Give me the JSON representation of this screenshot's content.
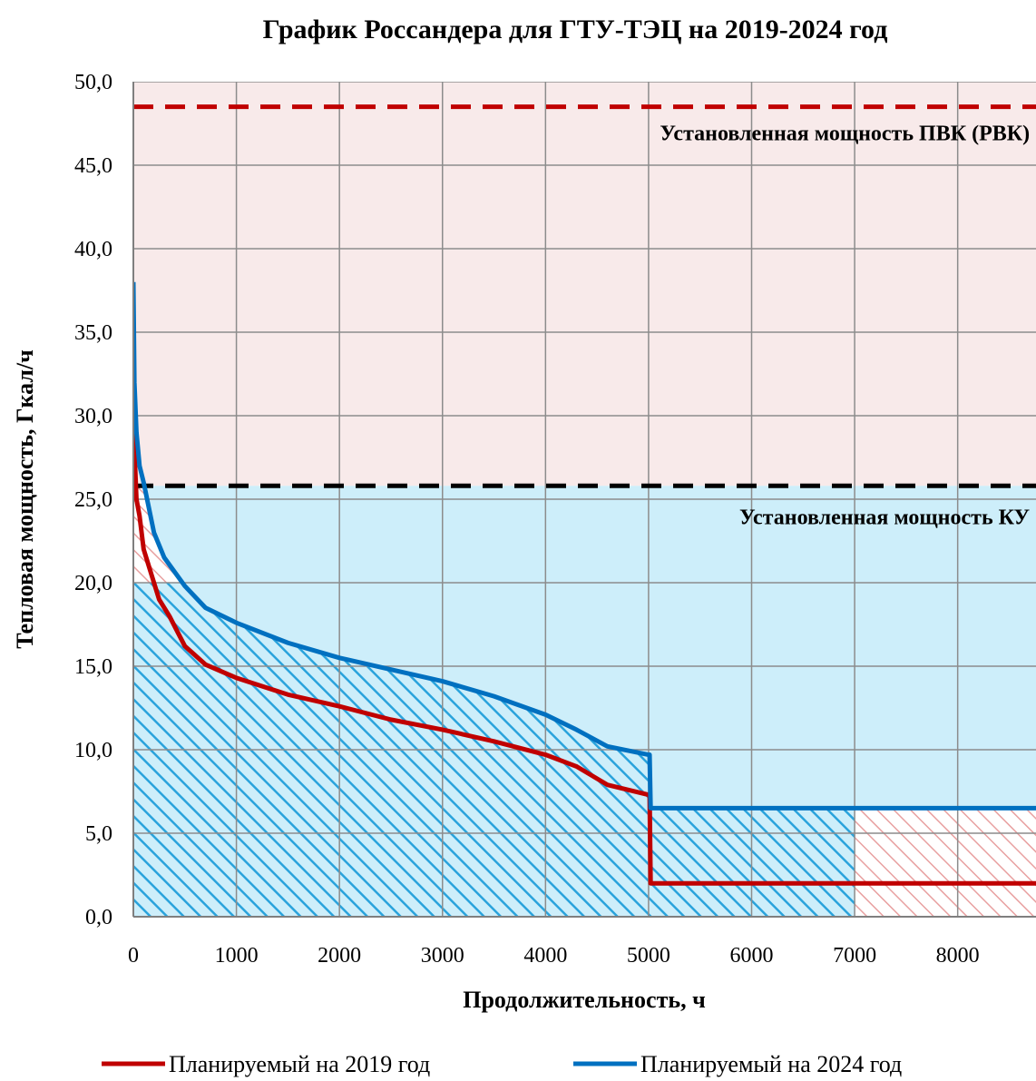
{
  "chart_data": {
    "type": "line",
    "title": "График Россандера для ГТУ-ТЭЦ на 2019-2024 год",
    "xlabel": "Продолжительность, ч",
    "ylabel": "Тепловая мощность, Гкал/ч",
    "xlim": [
      0,
      8760
    ],
    "ylim": [
      0,
      50
    ],
    "x_ticks": [
      0,
      1000,
      2000,
      3000,
      4000,
      5000,
      6000,
      7000,
      8000
    ],
    "x_tick_labels": [
      "0",
      "1000",
      "2000",
      "3000",
      "4000",
      "5000",
      "6000",
      "7000",
      "8000"
    ],
    "y_ticks": [
      0,
      5,
      10,
      15,
      20,
      25,
      30,
      35,
      40,
      45,
      50
    ],
    "y_tick_labels": [
      "0,0",
      "5,0",
      "10,0",
      "15,0",
      "20,0",
      "25,0",
      "30,0",
      "35,0",
      "40,0",
      "45,0",
      "50,0"
    ],
    "grid": true,
    "legend_position": "bottom",
    "series": [
      {
        "name": "Планируемый  на 2019 год",
        "color": "#c00000",
        "x": [
          0,
          10,
          30,
          60,
          100,
          150,
          250,
          350,
          500,
          700,
          1000,
          1500,
          2000,
          2500,
          3000,
          3500,
          4000,
          4300,
          4600,
          5000,
          5010,
          5020,
          8760
        ],
        "y": [
          32.5,
          28,
          25,
          24,
          22,
          21,
          19,
          18,
          16.2,
          15.1,
          14.3,
          13.3,
          12.6,
          11.8,
          11.2,
          10.5,
          9.7,
          9.0,
          7.9,
          7.3,
          7.3,
          2.0,
          2.0
        ]
      },
      {
        "name": "Планируемый  на 2024 год",
        "color": "#0070c0",
        "x": [
          0,
          10,
          30,
          60,
          100,
          200,
          300,
          500,
          700,
          1000,
          1500,
          2000,
          2500,
          3000,
          3500,
          4000,
          4300,
          4600,
          5000,
          5010,
          5020,
          8760
        ],
        "y": [
          38,
          32,
          29,
          27,
          26,
          23,
          21.5,
          19.8,
          18.5,
          17.6,
          16.4,
          15.5,
          14.8,
          14.1,
          13.2,
          12.1,
          11.2,
          10.2,
          9.7,
          9.7,
          6.5,
          6.5
        ]
      }
    ],
    "reference_lines": [
      {
        "y": 48.5,
        "color": "#c00000",
        "style": "dashed"
      },
      {
        "y": 25.8,
        "color": "#000000",
        "style": "dashed"
      }
    ],
    "regions": [
      {
        "name": "pvk-zone",
        "color": "#f8eaea",
        "y_range": [
          25.8,
          50
        ]
      },
      {
        "name": "ku-zone",
        "color": "#cdeefa",
        "y_range": [
          0,
          25.8
        ]
      }
    ],
    "hatch_colors": {
      "blue": "#2aa3dc",
      "red": "#e8a0a0"
    },
    "hatch_regions": [
      {
        "name": "hatch-blue-main",
        "color": "blue",
        "x_range": [
          0,
          5000
        ],
        "cap_y": 20,
        "under": "Планируемый  на 2024 год"
      },
      {
        "name": "hatch-blue-tail",
        "color": "blue",
        "x_range": [
          5000,
          7000
        ],
        "cap_y": 6.5
      },
      {
        "name": "hatch-red-tail",
        "color": "red",
        "x_range": [
          7000,
          8760
        ],
        "cap_y": 6.5
      },
      {
        "name": "hatch-red-peak",
        "color": "red",
        "y_range": [
          20,
          25.8
        ],
        "under": "Планируемый  на 2024 год"
      }
    ],
    "annotations": [
      {
        "text": "Установленная  мощность ПВК (РВК)",
        "x": 8700,
        "y": 46.5,
        "anchor": "end"
      },
      {
        "text": "Установленная  мощность КУ",
        "x": 8700,
        "y": 23.5,
        "anchor": "end"
      }
    ]
  }
}
